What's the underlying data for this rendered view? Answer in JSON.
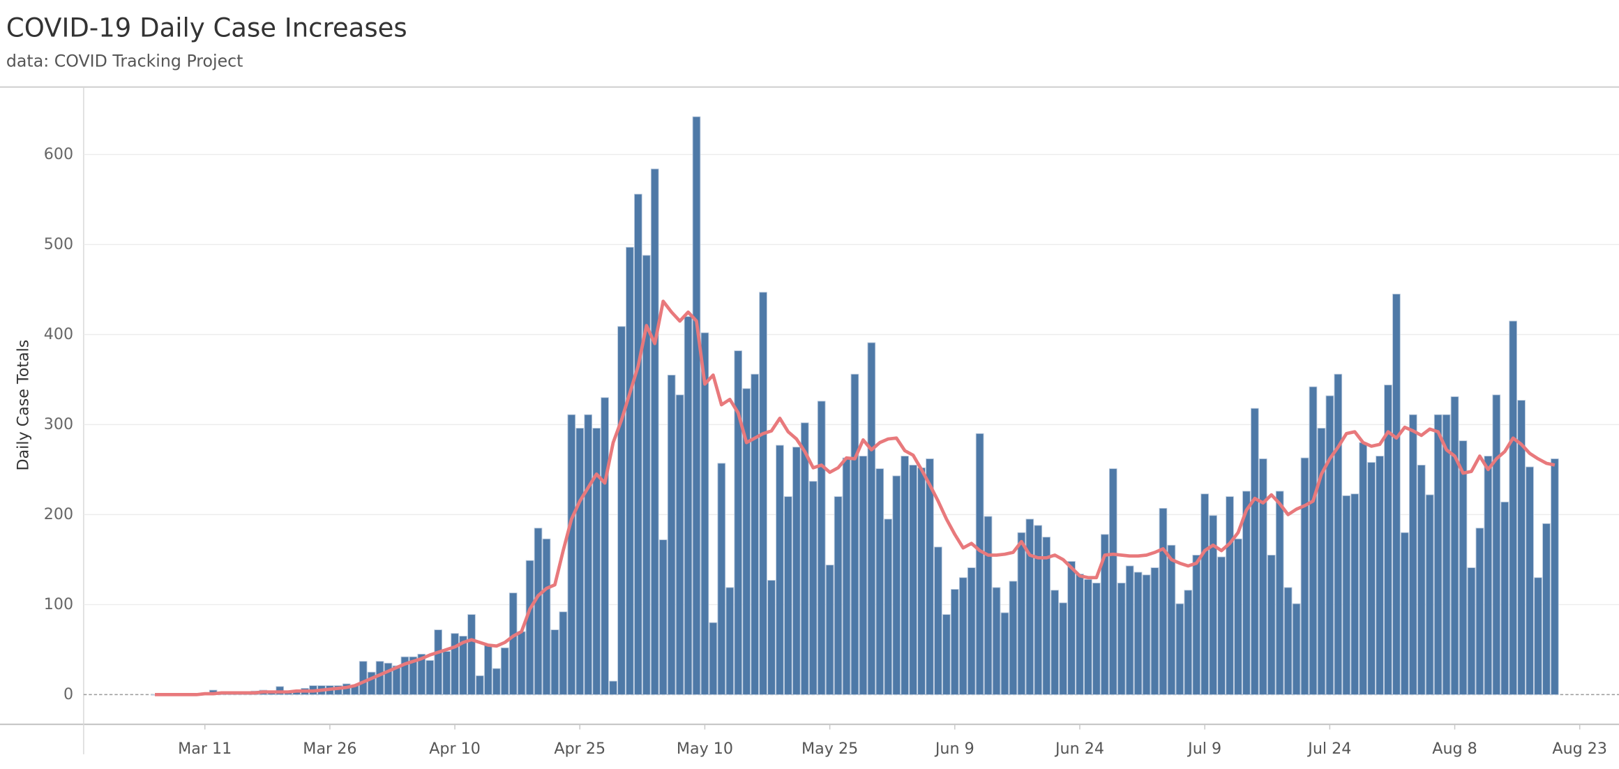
{
  "chart_data": {
    "type": "bar",
    "title": "COVID-19 Daily Case Increases",
    "subtitle": "data: COVID Tracking Project",
    "y_label": "Daily Case Totals",
    "categories": [
      null,
      null,
      null,
      null,
      null,
      null,
      "Mar 11",
      null,
      null,
      null,
      null,
      null,
      null,
      null,
      null,
      null,
      null,
      null,
      null,
      null,
      null,
      "Mar 26",
      null,
      null,
      null,
      null,
      null,
      null,
      null,
      null,
      null,
      null,
      null,
      null,
      null,
      null,
      "Apr 10",
      null,
      null,
      null,
      null,
      null,
      null,
      null,
      null,
      null,
      null,
      null,
      null,
      null,
      null,
      "Apr 25",
      null,
      null,
      null,
      null,
      null,
      null,
      null,
      null,
      null,
      null,
      null,
      null,
      null,
      null,
      "May 10",
      null,
      null,
      null,
      null,
      null,
      null,
      null,
      null,
      null,
      null,
      null,
      null,
      null,
      null,
      "May 25",
      null,
      null,
      null,
      null,
      null,
      null,
      null,
      null,
      null,
      null,
      null,
      null,
      null,
      null,
      "Jun 9",
      null,
      null,
      null,
      null,
      null,
      null,
      null,
      null,
      null,
      null,
      null,
      null,
      null,
      null,
      "Jun 24",
      null,
      null,
      null,
      null,
      null,
      null,
      null,
      null,
      null,
      null,
      null,
      null,
      null,
      null,
      "Jul 9",
      null,
      null,
      null,
      null,
      null,
      null,
      null,
      null,
      null,
      null,
      null,
      null,
      null,
      null,
      "Jul 24",
      null,
      null,
      null,
      null,
      null,
      null,
      null,
      null,
      null,
      null,
      null,
      null,
      null,
      null,
      "Aug 8",
      null,
      null,
      null,
      null,
      null,
      null,
      null,
      null,
      null,
      null,
      null,
      null,
      null,
      null,
      "Aug 23",
      null
    ],
    "values": [
      0,
      0,
      1,
      0,
      1,
      1,
      2,
      5,
      2,
      3,
      2,
      3,
      4,
      5,
      4,
      9,
      3,
      4,
      7,
      10,
      10,
      10,
      10,
      12,
      10,
      37,
      25,
      37,
      35,
      32,
      42,
      42,
      45,
      38,
      72,
      48,
      68,
      65,
      89,
      21,
      56,
      29,
      52,
      113,
      70,
      149,
      185,
      173,
      72,
      92,
      311,
      296,
      311,
      296,
      330,
      15,
      409,
      497,
      556,
      488,
      584,
      172,
      355,
      333,
      420,
      642,
      402,
      80,
      257,
      119,
      382,
      340,
      356,
      447,
      127,
      277,
      220,
      275,
      302,
      237,
      326,
      144,
      220,
      263,
      356,
      265,
      391,
      251,
      195,
      243,
      265,
      255,
      252,
      262,
      164,
      89,
      117,
      130,
      141,
      290,
      198,
      119,
      91,
      126,
      180,
      195,
      188,
      175,
      116,
      102,
      148,
      134,
      128,
      124,
      178,
      251,
      124,
      143,
      136,
      133,
      141,
      207,
      166,
      101,
      116,
      155,
      223,
      199,
      153,
      220,
      173,
      226,
      318,
      262,
      155,
      226,
      119,
      101,
      263,
      342,
      296,
      332,
      356,
      221,
      223,
      280,
      258,
      265,
      344,
      445,
      180,
      311,
      255,
      222,
      311,
      311,
      331,
      282,
      141,
      185,
      265,
      333,
      214,
      415,
      327,
      253,
      130,
      190,
      262,
      null,
      null,
      null,
      null
    ],
    "line_values": [
      0,
      0,
      0,
      0,
      0,
      0,
      1,
      1,
      2,
      2,
      2,
      2,
      2,
      3,
      3,
      3,
      3,
      4,
      4,
      4,
      5,
      6,
      7,
      8,
      10,
      14,
      18,
      22,
      26,
      30,
      34,
      37,
      40,
      44,
      47,
      50,
      53,
      58,
      61,
      58,
      55,
      54,
      58,
      65,
      70,
      95,
      110,
      118,
      122,
      160,
      195,
      215,
      230,
      245,
      235,
      280,
      305,
      335,
      365,
      410,
      390,
      437,
      425,
      415,
      425,
      415,
      345,
      355,
      322,
      328,
      313,
      280,
      285,
      290,
      293,
      307,
      292,
      284,
      270,
      252,
      255,
      247,
      252,
      263,
      262,
      283,
      272,
      280,
      284,
      285,
      271,
      266,
      250,
      233,
      215,
      195,
      178,
      163,
      168,
      160,
      155,
      155,
      156,
      158,
      170,
      155,
      152,
      152,
      155,
      150,
      141,
      132,
      130,
      130,
      155,
      156,
      155,
      154,
      154,
      155,
      158,
      162,
      150,
      146,
      143,
      146,
      160,
      166,
      160,
      168,
      180,
      205,
      218,
      213,
      222,
      212,
      200,
      206,
      210,
      215,
      245,
      262,
      275,
      290,
      292,
      280,
      276,
      278,
      292,
      285,
      297,
      293,
      288,
      295,
      292,
      272,
      265,
      246,
      248,
      265,
      250,
      262,
      270,
      285,
      278,
      268,
      262,
      257,
      255,
      null,
      null,
      null,
      null
    ],
    "color": "#4e79a7",
    "line_color": "#e8797c",
    "ylim": [
      -33,
      675
    ],
    "yticks": [
      0,
      100,
      200,
      300,
      400,
      500,
      600
    ],
    "grid": true
  }
}
